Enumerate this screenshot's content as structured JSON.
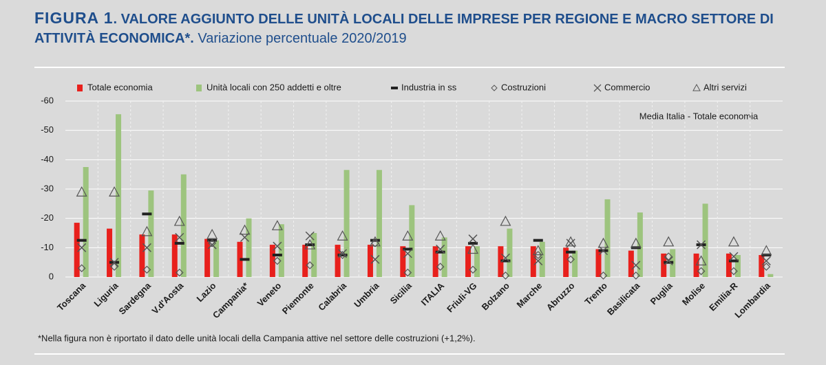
{
  "chart_data": {
    "type": "bar",
    "figure_label": "FIGURA 1",
    "title": ". VALORE AGGIUNTO DELLE UNITÀ LOCALI DELLE IMPRESE PER REGIONE E MACRO SETTORE DI ATTIVITÀ ECONOMICA*.",
    "subtitle": "Variazione percentuale 2020/2019",
    "annotation": "Media Italia - Totale economia",
    "footnote": "*Nella figura non è riportato il dato delle unità locali della Campania attive nel settore delle costruzioni (+1,2%).",
    "categories": [
      "Toscana",
      "Liguria",
      "Sardegna",
      "V.d'Aosta",
      "Lazio",
      "Campania*",
      "Veneto",
      "Piemonte",
      "Calabria",
      "Umbria",
      "Sicilia",
      "ITALIA",
      "Friuli-VG",
      "Bolzano",
      "Marche",
      "Abruzzo",
      "Trento",
      "Basilicata",
      "Puglia",
      "Molise",
      "Emilia-R",
      "Lombardia"
    ],
    "ylim": [
      0,
      -60
    ],
    "yticks": [
      0,
      -10,
      -20,
      -30,
      -40,
      -50,
      -60
    ],
    "grid": true,
    "series": [
      {
        "name": "Totale economia",
        "color": "#e8201c",
        "marker": "bar",
        "values": [
          -18.5,
          -16.5,
          -14.5,
          -14.5,
          -13,
          -12,
          -11,
          -11,
          -11,
          -11,
          -10.5,
          -10.5,
          -10.5,
          -10.5,
          -10.5,
          -10,
          -9.5,
          -9,
          -8,
          -8,
          -8,
          -7.5
        ]
      },
      {
        "name": "Unità locali con 250 addetti e oltre",
        "color": "#9dc47e",
        "marker": "bar",
        "values": [
          -37.5,
          -55.5,
          -29.5,
          -35,
          -12.5,
          -20,
          -18,
          -15,
          -36.5,
          -36.5,
          -24.5,
          -13.5,
          -10.5,
          -16.5,
          -12,
          -9,
          -26.5,
          -22,
          -9.5,
          -25,
          -7.5,
          -1
        ]
      },
      {
        "name": "Industria in ss",
        "color": "#333333",
        "marker": "dash",
        "values": [
          -12.5,
          -5,
          -21.5,
          -11.5,
          -12.5,
          -6,
          -7.5,
          -11,
          -7.5,
          -12.5,
          -9.5,
          -8.5,
          -11.5,
          -5.5,
          -12.5,
          -8.5,
          -9,
          -10,
          -5,
          -11,
          -5.5,
          -7.5
        ]
      },
      {
        "name": "Costruzioni",
        "color": "#555555",
        "marker": "diamond",
        "values": [
          -3,
          -3.5,
          -2.5,
          -1.5,
          -11.5,
          null,
          -5.5,
          -4,
          -7.5,
          -11.5,
          -1.5,
          -3.5,
          -2.5,
          -0.5,
          -7.5,
          -6,
          -0.5,
          -0.5,
          -7,
          -2,
          -2,
          -3.5
        ]
      },
      {
        "name": "Commercio",
        "color": "#555555",
        "marker": "x",
        "values": [
          -10,
          -5,
          -10,
          -13.5,
          -11,
          -13.5,
          -10.5,
          -14,
          -8,
          -6,
          -8,
          -9.5,
          -13,
          -6.5,
          -5.5,
          -11.5,
          -9,
          -4,
          -5.5,
          -11,
          -7,
          -5.5
        ]
      },
      {
        "name": "Altri servizi",
        "color": "#555555",
        "marker": "triangle",
        "values": [
          -29,
          -29,
          -15.5,
          -19,
          -14.5,
          -16,
          -17.5,
          -11,
          -14,
          -12,
          -14,
          -14,
          -9.5,
          -19,
          -9,
          -12,
          -11.5,
          -11.5,
          -12,
          -5.5,
          -12,
          -9
        ]
      }
    ]
  }
}
